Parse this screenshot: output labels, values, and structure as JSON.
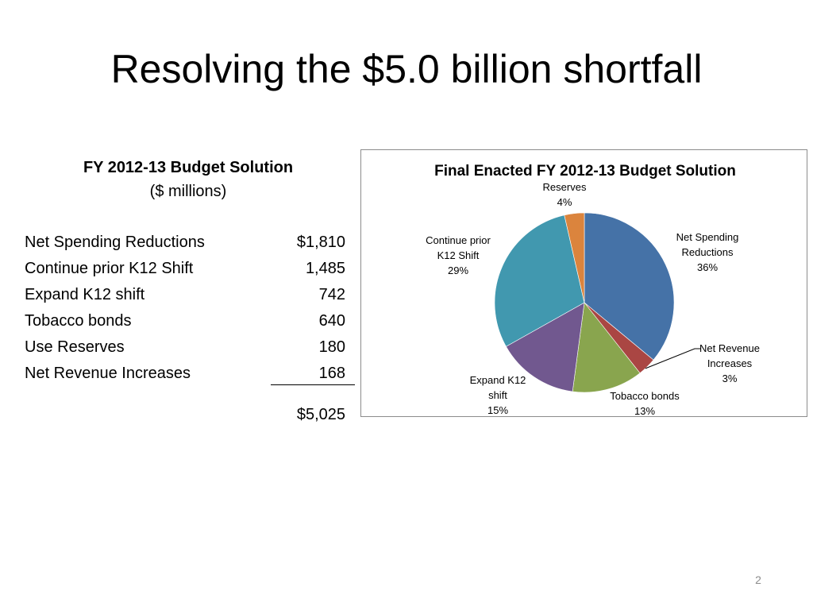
{
  "slide": {
    "title": "Resolving the $5.0 billion shortfall",
    "page_number": "2"
  },
  "table": {
    "title": "FY 2012-13 Budget Solution",
    "subtitle": "($ millions)",
    "rows": [
      {
        "label": "Net Spending Reductions",
        "value": "$1,810"
      },
      {
        "label": "Continue prior K12 Shift",
        "value": "1,485"
      },
      {
        "label": "Expand K12 shift",
        "value": "742"
      },
      {
        "label": "Tobacco bonds",
        "value": "640"
      },
      {
        "label": "Use Reserves",
        "value": "180"
      },
      {
        "label": "Net Revenue Increases",
        "value": "168"
      }
    ],
    "total": "$5,025"
  },
  "chart_data": {
    "type": "pie",
    "title": "Final Enacted FY 2012-13 Budget Solution",
    "slices": [
      {
        "label_lines": [
          "Net Spending",
          "Reductions"
        ],
        "percent_label": "36%",
        "value": 1810,
        "color": "#4572A7"
      },
      {
        "label_lines": [
          "Net Revenue",
          "Increases"
        ],
        "percent_label": "3%",
        "value": 168,
        "color": "#AA4643"
      },
      {
        "label_lines": [
          "Tobacco bonds"
        ],
        "percent_label": "13%",
        "value": 640,
        "color": "#89A54E"
      },
      {
        "label_lines": [
          "Expand K12",
          "shift"
        ],
        "percent_label": "15%",
        "value": 742,
        "color": "#71588F"
      },
      {
        "label_lines": [
          "Continue prior",
          "K12 Shift"
        ],
        "percent_label": "29%",
        "value": 1485,
        "color": "#4198AF"
      },
      {
        "label_lines": [
          "Reserves"
        ],
        "percent_label": "4%",
        "value": 180,
        "color": "#DB843D"
      }
    ]
  }
}
